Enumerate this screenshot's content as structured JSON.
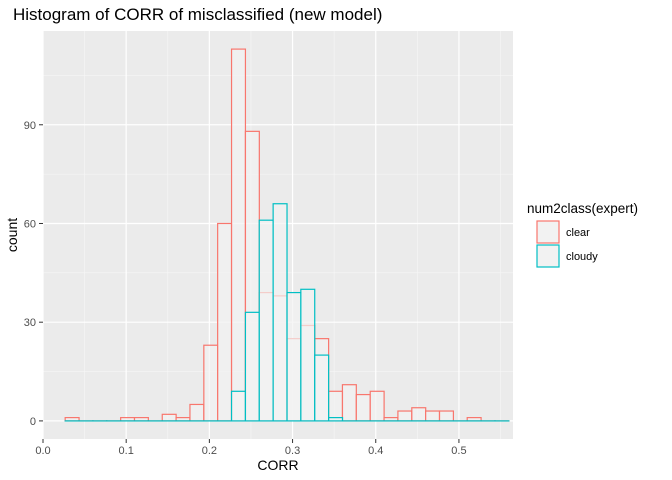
{
  "chart_data": {
    "type": "histogram",
    "title": "Histogram of CORR of misclassified (new model)",
    "xlabel": "CORR",
    "ylabel": "count",
    "xlim": [
      0.0,
      0.565
    ],
    "ylim": [
      -5.5,
      118.5
    ],
    "x_ticks": [
      0.0,
      0.1,
      0.2,
      0.3,
      0.4,
      0.5
    ],
    "x_tick_labels": [
      "0.0",
      "0.1",
      "0.2",
      "0.3",
      "0.4",
      "0.5"
    ],
    "y_ticks": [
      0,
      30,
      60,
      90
    ],
    "y_tick_labels": [
      "0",
      "30",
      "60",
      "90"
    ],
    "grid": true,
    "legend": {
      "title": "num2class(expert)",
      "placement": "right",
      "entries": [
        "clear",
        "cloudy"
      ]
    },
    "bin_width": 0.0167,
    "bin_centers": [
      0.035,
      0.0517,
      0.0683,
      0.085,
      0.1017,
      0.1183,
      0.135,
      0.1517,
      0.1683,
      0.185,
      0.2017,
      0.2183,
      0.235,
      0.2517,
      0.2683,
      0.285,
      0.3017,
      0.3183,
      0.335,
      0.3517,
      0.3683,
      0.385,
      0.4017,
      0.4183,
      0.435,
      0.4517,
      0.4683,
      0.485,
      0.5017,
      0.5183,
      0.535,
      0.5517
    ],
    "series": [
      {
        "name": "clear",
        "color": "#F8766D",
        "values": [
          1,
          0,
          0,
          0,
          1,
          1,
          0,
          2,
          1,
          5,
          23,
          60,
          113,
          88,
          39,
          38,
          25,
          29,
          25,
          9,
          11,
          8,
          9,
          1,
          3,
          4,
          3,
          3,
          0,
          1,
          0,
          0
        ]
      },
      {
        "name": "cloudy",
        "color": "#00BFC4",
        "values": [
          0,
          0,
          0,
          0,
          0,
          0,
          0,
          0,
          0,
          0,
          0,
          0,
          9,
          33,
          61,
          66,
          39,
          40,
          20,
          1,
          0,
          0,
          0,
          0,
          0,
          0,
          0,
          0,
          0,
          0,
          0,
          0
        ]
      }
    ]
  }
}
